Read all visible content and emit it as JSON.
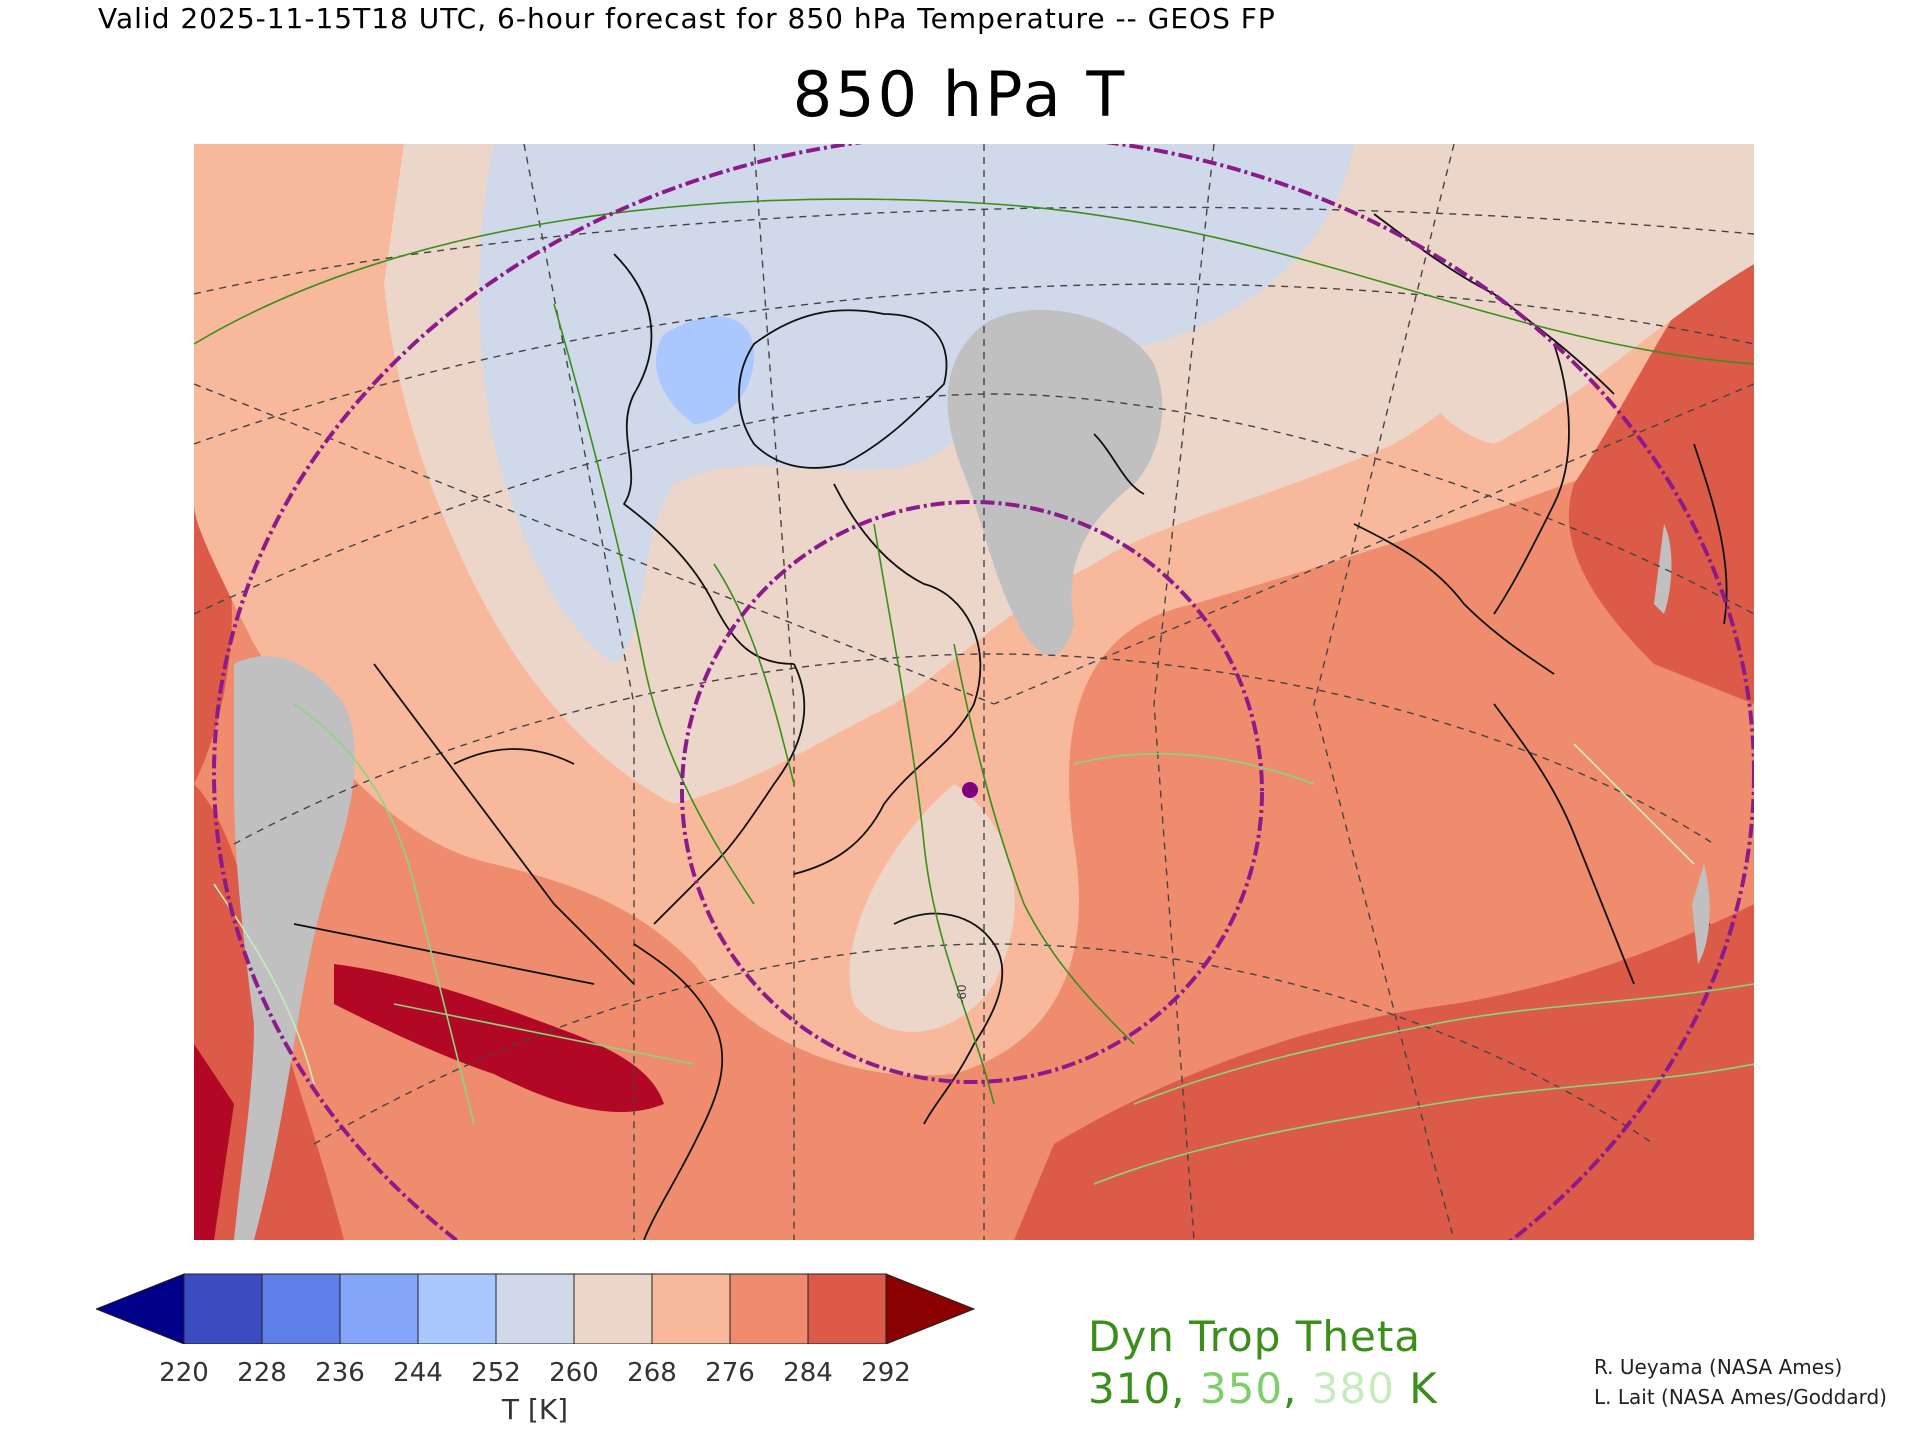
{
  "header": {
    "valid_line": "Valid 2025-11-15T18 UTC, 6-hour forecast for 850 hPa Temperature -- GEOS FP",
    "title": "850 hPa T"
  },
  "colorbar": {
    "ticks": [
      "220",
      "228",
      "236",
      "244",
      "252",
      "260",
      "268",
      "276",
      "284",
      "292"
    ],
    "label": "T [K]",
    "colors": [
      "#3b4cc0",
      "#5f7fe8",
      "#86a6fb",
      "#aac8fd",
      "#d0d9ea",
      "#ecd6ca",
      "#f7b89b",
      "#ef8c6e",
      "#dc5a48"
    ],
    "under_color": "#00008b",
    "over_color": "#8b0000"
  },
  "overlay_legend": {
    "title": "Dyn Trop Theta",
    "levels": [
      {
        "text": "310",
        "color": "#3a8f1a"
      },
      {
        "text": ", ",
        "color": "#3a8f1a"
      },
      {
        "text": "350",
        "color": "#7ecf6a"
      },
      {
        "text": ", ",
        "color": "#3a8f1a"
      },
      {
        "text": "380",
        "color": "#c6ecbd"
      },
      {
        "text": " K",
        "color": "#3a8f1a"
      }
    ]
  },
  "map": {
    "contour_label": "-60",
    "colors": {
      "warmest": "#b20826",
      "warm1": "#dc5a48",
      "warm2": "#ef8c6e",
      "warm3": "#f7b89b",
      "neutral": "#ecd6ca",
      "cool": "#d0d9ea",
      "cold": "#aac8fd",
      "missing": "#c0c0c0",
      "circle": "#8b1a8b",
      "coast": "#111111",
      "theta_dark": "#3a8f1a",
      "theta_light": "#86d87a"
    }
  },
  "credits": [
    "R. Ueyama (NASA Ames)",
    "L. Lait (NASA Ames/Goddard)"
  ]
}
